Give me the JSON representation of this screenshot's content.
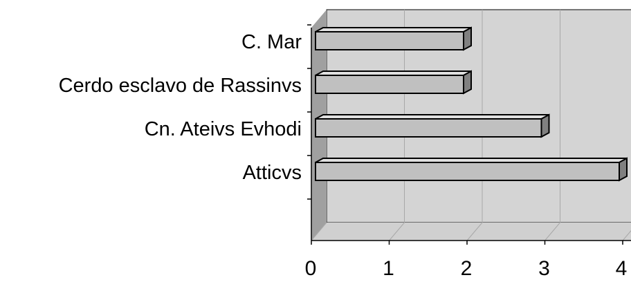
{
  "chart_data": {
    "type": "bar",
    "orientation": "horizontal",
    "style": "3d",
    "categories": [
      "C. Mar",
      "Cerdo esclavo de Rassinvs",
      "Cn. Ateivs Evhodi",
      "Atticvs"
    ],
    "values": [
      2,
      2,
      3,
      4
    ],
    "xlim": [
      0,
      4
    ],
    "x_ticks": [
      "0",
      "1",
      "2",
      "3",
      "4"
    ],
    "grid": true,
    "legend": "none",
    "colors": {
      "bar_front": "#c0c0c0",
      "bar_top": "#e0e0e0",
      "bar_side": "#808080",
      "back_wall": "#d4d4d4",
      "side_wall": "#a0a0a0",
      "floor": "#d0d0d0",
      "gridline": "#a8a8a8"
    }
  }
}
